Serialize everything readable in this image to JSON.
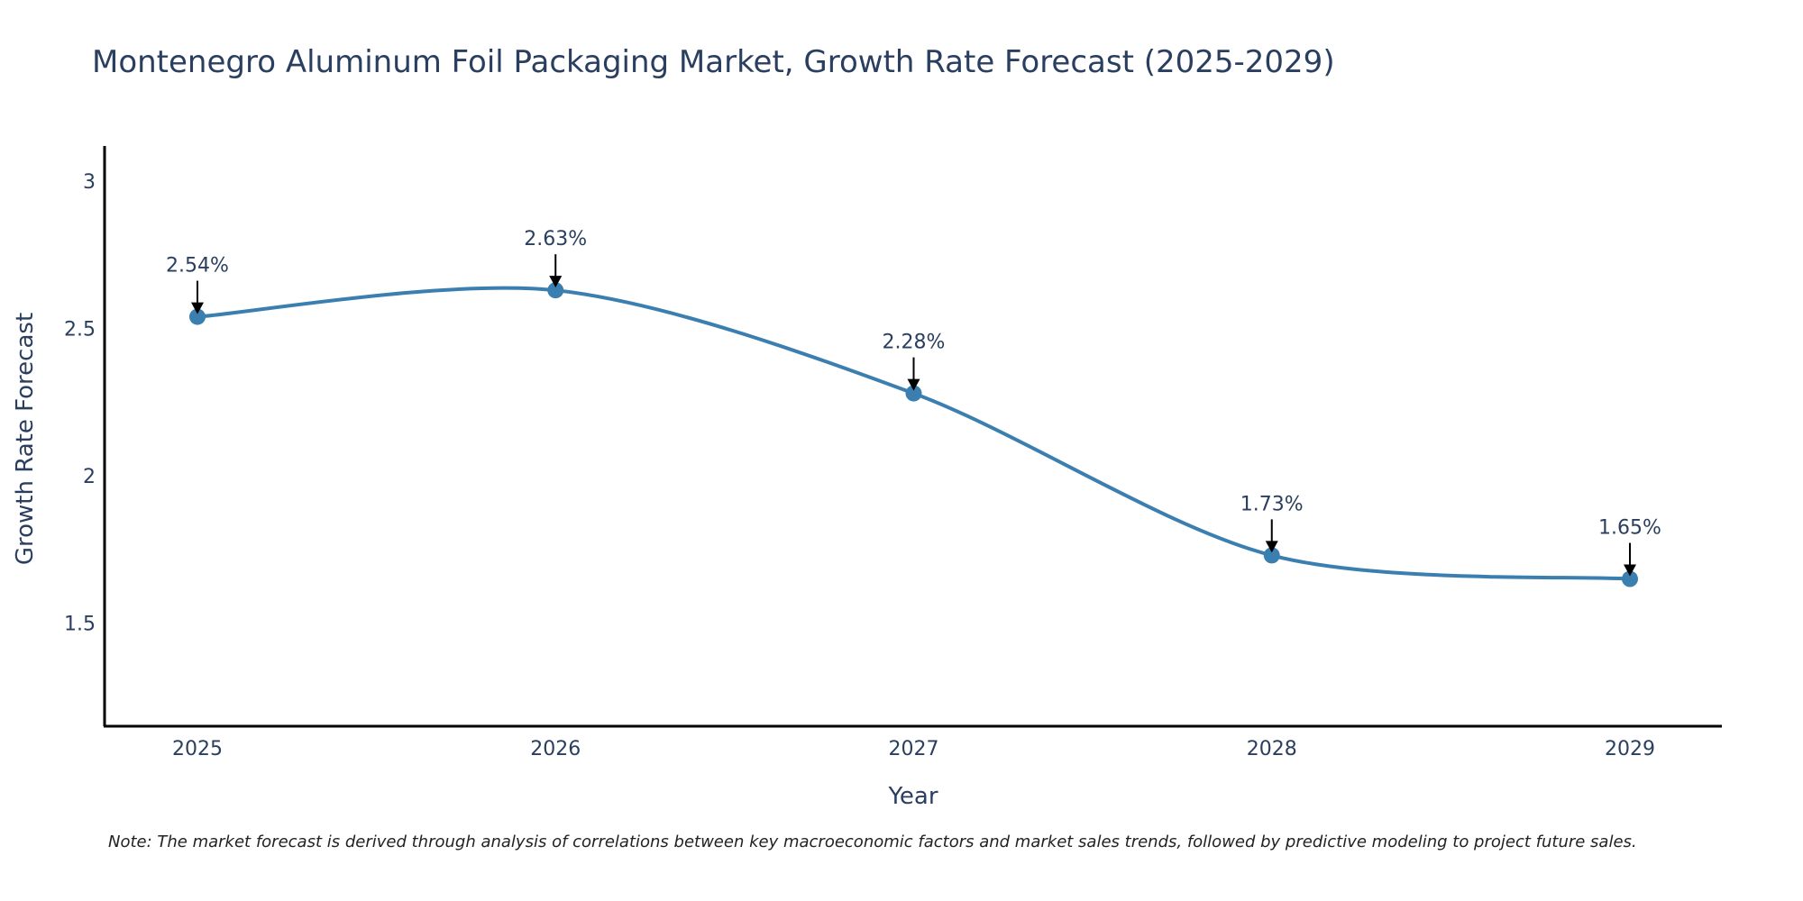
{
  "chart_data": {
    "type": "line",
    "title": "Montenegro Aluminum Foil Packaging Market, Growth Rate Forecast (2025-2029)",
    "xlabel": "Year",
    "ylabel": "Growth Rate Forecast",
    "categories": [
      "2025",
      "2026",
      "2027",
      "2028",
      "2029"
    ],
    "series": [
      {
        "name": "Growth Rate Forecast",
        "values": [
          2.54,
          2.63,
          2.28,
          1.73,
          1.65
        ],
        "labels": [
          "2.54%",
          "2.63%",
          "2.28%",
          "1.73%",
          "1.65%"
        ]
      }
    ],
    "ylim": [
      1.15,
      3.12
    ],
    "yticks": [
      1.5,
      2,
      2.5,
      3
    ],
    "ytick_labels": [
      "1.5",
      "2",
      "2.5",
      "3"
    ],
    "grid": false,
    "legend": "none",
    "line_shape": "spline",
    "colors": {
      "line": "#3b7fb0",
      "marker": "#3b7fb0",
      "axis": "#000000",
      "text": "#2a3f5f",
      "arrow": "#000000"
    },
    "note": "Note: The market forecast is derived through analysis of correlations between key macroeconomic factors and market sales trends, followed by predictive modeling to project future sales."
  }
}
